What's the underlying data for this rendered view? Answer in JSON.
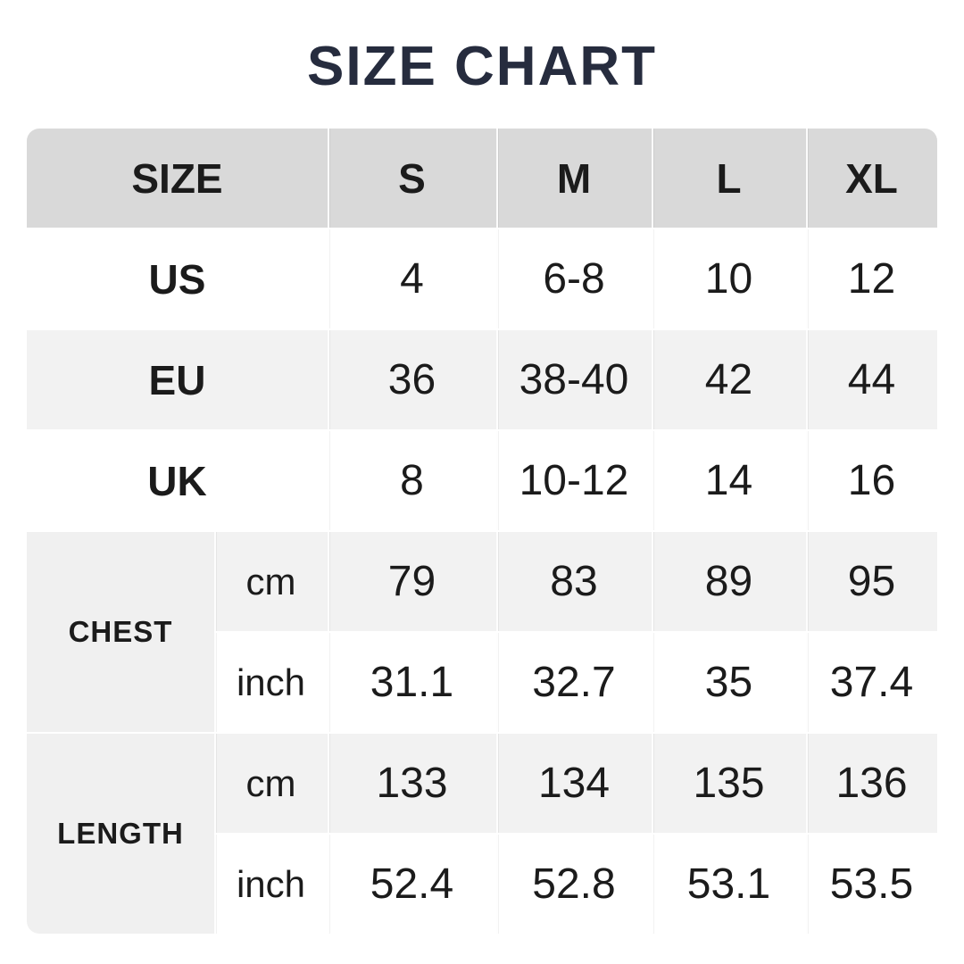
{
  "colors": {
    "title_color": "#262c3e",
    "header_bg": "#d9d9d9",
    "stripe_bg": "#f2f2f2",
    "label_bg": "#f0f0f0",
    "text_color": "#1b1b1b",
    "page_bg": "#ffffff"
  },
  "chart_data": {
    "type": "table",
    "title": "SIZE CHART",
    "columns": [
      "SIZE",
      "S",
      "M",
      "L",
      "XL"
    ],
    "rows": [
      {
        "label": "US",
        "values": [
          "4",
          "6-8",
          "10",
          "12"
        ]
      },
      {
        "label": "EU",
        "values": [
          "36",
          "38-40",
          "42",
          "44"
        ]
      },
      {
        "label": "UK",
        "values": [
          "8",
          "10-12",
          "14",
          "16"
        ]
      },
      {
        "label": "CHEST",
        "unit": "cm",
        "values": [
          "79",
          "83",
          "89",
          "95"
        ]
      },
      {
        "label": "CHEST",
        "unit": "inch",
        "values": [
          "31.1",
          "32.7",
          "35",
          "37.4"
        ]
      },
      {
        "label": "LENGTH",
        "unit": "cm",
        "values": [
          "133",
          "134",
          "135",
          "136"
        ]
      },
      {
        "label": "LENGTH",
        "unit": "inch",
        "values": [
          "52.4",
          "52.8",
          "53.1",
          "53.5"
        ]
      }
    ]
  }
}
